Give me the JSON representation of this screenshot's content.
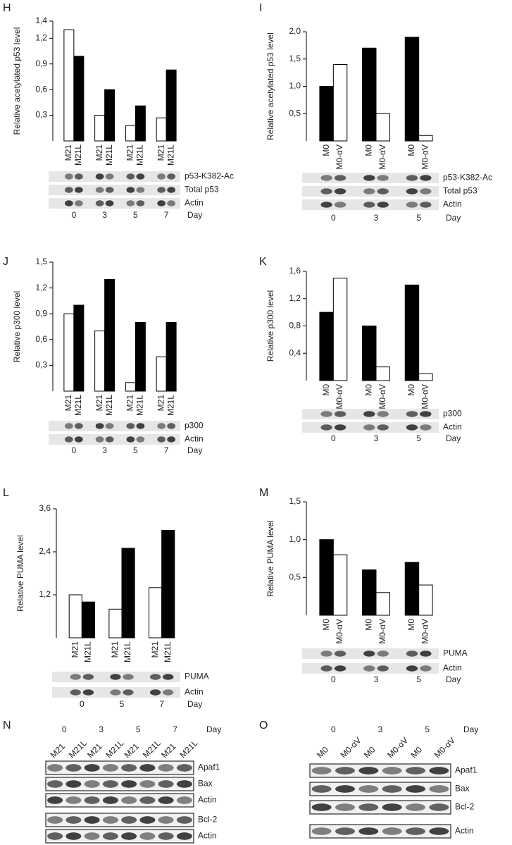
{
  "chart_data": [
    {
      "type": "bar",
      "panel": "H",
      "ylabel": "Relative acetylated p53 level",
      "x_label": "Day",
      "categories": [
        "0",
        "3",
        "5",
        "7"
      ],
      "series": [
        {
          "name": "M21",
          "color": "#ffffff",
          "values": [
            1.3,
            0.3,
            0.18,
            0.27
          ]
        },
        {
          "name": "M21L",
          "color": "#000000",
          "values": [
            0.99,
            0.6,
            0.41,
            0.83
          ]
        }
      ],
      "ylim": [
        0,
        1.4
      ],
      "yticks": [
        {
          "value": 0.3,
          "label": "0,3"
        },
        {
          "value": 0.6,
          "label": "0,6"
        },
        {
          "value": 0.9,
          "label": "0,9"
        },
        {
          "value": 1.2,
          "label": "1,2"
        },
        {
          "value": 1.4,
          "label": "1,4"
        }
      ],
      "blots": [
        "p53-K382-Ac",
        "Total p53",
        "Actin"
      ]
    },
    {
      "type": "bar",
      "panel": "I",
      "ylabel": "Relative acetylated p53 level",
      "x_label": "Day",
      "categories": [
        "0",
        "3",
        "5"
      ],
      "series": [
        {
          "name": "M0",
          "color": "#000000",
          "values": [
            1.0,
            1.7,
            1.9
          ]
        },
        {
          "name": "M0-αV",
          "color": "#ffffff",
          "values": [
            1.4,
            0.5,
            0.1
          ]
        }
      ],
      "ylim": [
        0,
        2.0
      ],
      "yticks": [
        {
          "value": 0.5,
          "label": "0,5"
        },
        {
          "value": 1.0,
          "label": "1,0"
        },
        {
          "value": 1.5,
          "label": "1,5"
        },
        {
          "value": 2.0,
          "label": "2,0"
        }
      ],
      "blots": [
        "p53-K382-Ac",
        "Total p53",
        "Actin"
      ]
    },
    {
      "type": "bar",
      "panel": "J",
      "ylabel": "Relative p300 level",
      "x_label": "Day",
      "categories": [
        "0",
        "3",
        "5",
        "7"
      ],
      "series": [
        {
          "name": "M21",
          "color": "#ffffff",
          "values": [
            0.9,
            0.7,
            0.1,
            0.4
          ]
        },
        {
          "name": "M21L",
          "color": "#000000",
          "values": [
            1.0,
            1.3,
            0.8,
            0.8
          ]
        }
      ],
      "ylim": [
        0,
        1.5
      ],
      "yticks": [
        {
          "value": 0.3,
          "label": "0,3"
        },
        {
          "value": 0.6,
          "label": "0,6"
        },
        {
          "value": 0.9,
          "label": "0,9"
        },
        {
          "value": 1.2,
          "label": "1,2"
        },
        {
          "value": 1.5,
          "label": "1,5"
        }
      ],
      "blots": [
        "p300",
        "Actin"
      ]
    },
    {
      "type": "bar",
      "panel": "K",
      "ylabel": "Relative p300 level",
      "x_label": "Day",
      "categories": [
        "0",
        "3",
        "5"
      ],
      "series": [
        {
          "name": "M0",
          "color": "#000000",
          "values": [
            1.0,
            0.8,
            1.4
          ]
        },
        {
          "name": "M0-αV",
          "color": "#ffffff",
          "values": [
            1.5,
            0.2,
            0.1
          ]
        }
      ],
      "ylim": [
        0,
        1.6
      ],
      "yticks": [
        {
          "value": 0.4,
          "label": "0,4"
        },
        {
          "value": 0.8,
          "label": "0,8"
        },
        {
          "value": 1.2,
          "label": "1,2"
        },
        {
          "value": 1.6,
          "label": "1,6"
        }
      ],
      "blots": [
        "p300",
        "Actin"
      ]
    },
    {
      "type": "bar",
      "panel": "L",
      "ylabel": "Relative PUMA level",
      "x_label": "Day",
      "categories": [
        "0",
        "5",
        "7"
      ],
      "series": [
        {
          "name": "M21",
          "color": "#ffffff",
          "values": [
            1.2,
            0.8,
            1.4
          ]
        },
        {
          "name": "M21L",
          "color": "#000000",
          "values": [
            1.0,
            2.5,
            3.0
          ]
        }
      ],
      "ylim": [
        0,
        3.6
      ],
      "yticks": [
        {
          "value": 1.2,
          "label": "1,2"
        },
        {
          "value": 2.4,
          "label": "2,4"
        },
        {
          "value": 3.6,
          "label": "3,6"
        }
      ],
      "blots": [
        "PUMA",
        "Actin"
      ]
    },
    {
      "type": "bar",
      "panel": "M",
      "ylabel": "Relative PUMA level",
      "x_label": "Day",
      "categories": [
        "0",
        "3",
        "5"
      ],
      "series": [
        {
          "name": "M0",
          "color": "#000000",
          "values": [
            1.0,
            0.6,
            0.7
          ]
        },
        {
          "name": "M0-αV",
          "color": "#ffffff",
          "values": [
            0.8,
            0.3,
            0.4
          ]
        }
      ],
      "ylim": [
        0,
        1.5
      ],
      "yticks": [
        {
          "value": 0.5,
          "label": "0,5"
        },
        {
          "value": 1.0,
          "label": "1,0"
        },
        {
          "value": 1.5,
          "label": "1,5"
        }
      ],
      "blots": [
        "PUMA",
        "Actin"
      ]
    }
  ],
  "blot_panels": [
    {
      "panel": "N",
      "days": [
        "0",
        "3",
        "5",
        "7"
      ],
      "x_label": "Day",
      "lane_names": [
        "M21",
        "M21L"
      ],
      "rows": [
        "Apaf1",
        "Bax",
        "Actin",
        "Bcl-2",
        "Actin"
      ]
    },
    {
      "panel": "O",
      "days": [
        "0",
        "3",
        "5"
      ],
      "x_label": "Day",
      "lane_names": [
        "M0",
        "M0-αV"
      ],
      "rows": [
        "Apaf1",
        "Bax",
        "Bcl-2",
        "Actin"
      ]
    }
  ]
}
